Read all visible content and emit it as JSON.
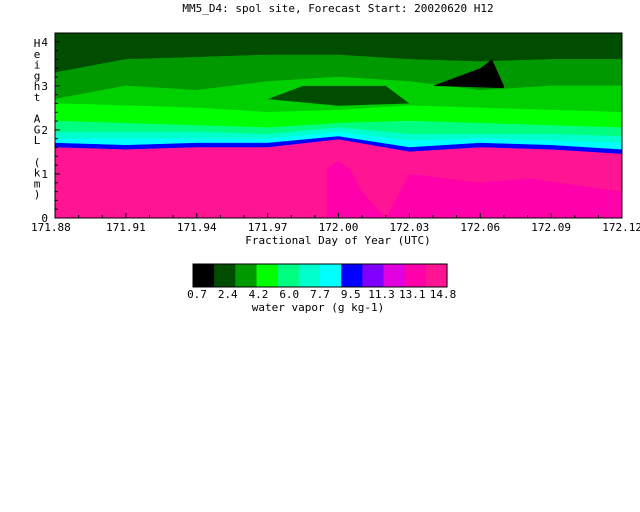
{
  "chart_data": {
    "type": "heatmap",
    "title": "MM5_D4: spol site,  Forecast Start: 20020620 H12",
    "xlabel": "Fractional Day of Year (UTC)",
    "ylabel": "Height AGL (km)",
    "xlim": [
      171.88,
      172.12
    ],
    "ylim": [
      0,
      4.2
    ],
    "x_tick_labels": [
      "171.88",
      "171.91",
      "171.94",
      "171.97",
      "172.00",
      "172.03",
      "172.06",
      "172.09",
      "172.12"
    ],
    "y_tick_labels": [
      "0",
      "1",
      "2",
      "3",
      "4"
    ],
    "grid": false,
    "colorbar": {
      "label": "water vapor (g kg-1)",
      "tick_labels": [
        "0.7",
        "2.4",
        "4.2",
        "6.0",
        "7.7",
        "9.5",
        "11.3",
        "13.1",
        "14.8"
      ],
      "bounds": [
        0.7,
        2.4,
        4.2,
        6.0,
        7.7,
        9.5,
        11.3,
        13.1,
        14.8
      ],
      "colors": [
        "#000000",
        "#004d00",
        "#009900",
        "#00ff00",
        "#00ff80",
        "#00ffcc",
        "#00ffff",
        "#0000ff",
        "#8000ff",
        "#e000e0",
        "#ff00aa",
        "#ff1493"
      ]
    },
    "x": [
      171.88,
      171.91,
      171.94,
      171.97,
      172.0,
      172.03,
      172.06,
      172.09,
      172.12
    ],
    "levels": [
      {
        "name": "L0",
        "y": [
          4.2,
          4.2,
          4.2,
          4.2,
          4.2,
          4.2,
          4.2,
          4.2,
          4.2
        ]
      },
      {
        "name": "L1",
        "y": [
          3.3,
          3.6,
          3.65,
          3.7,
          3.7,
          3.6,
          3.55,
          3.6,
          3.6
        ]
      },
      {
        "name": "L2",
        "y": [
          2.7,
          3.0,
          2.9,
          3.1,
          3.2,
          3.1,
          2.9,
          3.0,
          3.0
        ]
      },
      {
        "name": "L3",
        "y": [
          2.6,
          2.55,
          2.5,
          2.4,
          2.45,
          2.55,
          2.5,
          2.45,
          2.4
        ]
      },
      {
        "name": "L4",
        "y": [
          2.2,
          2.15,
          2.1,
          2.05,
          2.15,
          2.2,
          2.15,
          2.1,
          2.05
        ]
      },
      {
        "name": "L5",
        "y": [
          1.95,
          1.95,
          1.95,
          1.9,
          2.05,
          1.9,
          1.9,
          1.9,
          1.85
        ]
      },
      {
        "name": "L6",
        "y": [
          1.8,
          1.8,
          1.8,
          1.8,
          1.95,
          1.75,
          1.8,
          1.75,
          1.7
        ]
      },
      {
        "name": "L7",
        "y": [
          1.7,
          1.65,
          1.7,
          1.7,
          1.85,
          1.6,
          1.7,
          1.65,
          1.55
        ]
      },
      {
        "name": "L8",
        "y": [
          1.6,
          1.55,
          1.6,
          1.6,
          1.78,
          1.5,
          1.6,
          1.55,
          1.45
        ]
      },
      {
        "name": "L9",
        "y": [
          0.0,
          0.0,
          0.0,
          0.0,
          0.0,
          0.0,
          0.0,
          0.0,
          0.0
        ]
      }
    ],
    "level_colors": [
      "#004d00",
      "#009900",
      "#00d000",
      "#00ff00",
      "#00ff80",
      "#00ffcc",
      "#00ffff",
      "#0000ff",
      "#ff1493"
    ],
    "features": [
      {
        "name": "dry-pocket",
        "color": "#000000",
        "pts": [
          [
            172.04,
            3.0
          ],
          [
            172.06,
            3.4
          ],
          [
            172.065,
            3.6
          ],
          [
            172.07,
            3.0
          ],
          [
            172.07,
            2.95
          ]
        ]
      },
      {
        "name": "dark-tongue",
        "color": "#004d00",
        "pts": [
          [
            171.97,
            2.7
          ],
          [
            171.985,
            3.0
          ],
          [
            172.02,
            3.0
          ],
          [
            172.03,
            2.6
          ],
          [
            172.0,
            2.55
          ]
        ]
      },
      {
        "name": "moist-plume",
        "color": "#ff00aa",
        "pts": [
          [
            171.995,
            0.0
          ],
          [
            171.995,
            1.1
          ],
          [
            172.0,
            1.3
          ],
          [
            172.005,
            1.1
          ],
          [
            172.01,
            0.6
          ],
          [
            172.02,
            0.0
          ]
        ]
      },
      {
        "name": "moist-region-2",
        "color": "#ff00aa",
        "pts": [
          [
            172.02,
            0.0
          ],
          [
            172.03,
            1.0
          ],
          [
            172.06,
            0.8
          ],
          [
            172.08,
            0.9
          ],
          [
            172.12,
            0.6
          ],
          [
            172.12,
            0.0
          ]
        ]
      },
      {
        "name": "green-patch",
        "color": "#009900",
        "pts": [
          [
            172.09,
            3.2
          ],
          [
            172.1,
            3.4
          ],
          [
            172.11,
            3.3
          ],
          [
            172.1,
            3.1
          ]
        ]
      }
    ]
  }
}
